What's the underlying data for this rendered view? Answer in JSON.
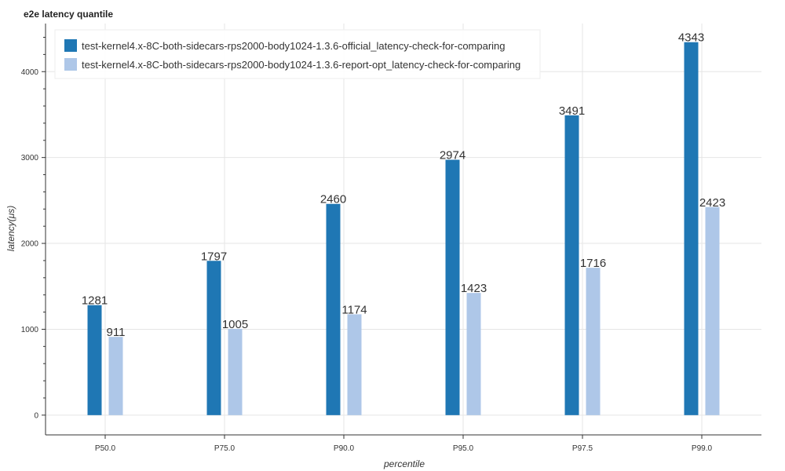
{
  "chart_data": {
    "type": "bar",
    "title": "e2e latency quantile",
    "xlabel": "percentile",
    "ylabel": "latency(μs)",
    "categories": [
      "P50.0",
      "P75.0",
      "P90.0",
      "P95.0",
      "P97.5",
      "P99.0"
    ],
    "series": [
      {
        "name": "test-kernel4.x-8C-both-sidecars-rps2000-body1024-1.3.6-official_latency-check-for-comparing",
        "color": "#1f77b4",
        "values": [
          1281,
          1797,
          2460,
          2974,
          3491,
          4343
        ]
      },
      {
        "name": "test-kernel4.x-8C-both-sidecars-rps2000-body1024-1.3.6-report-opt_latency-check-for-comparing",
        "color": "#aec7e8",
        "values": [
          911,
          1005,
          1174,
          1423,
          1716,
          2423
        ]
      }
    ],
    "yticks": [
      0,
      1000,
      2000,
      3000,
      4000
    ],
    "ylim": [
      -230,
      4560
    ],
    "grid": true,
    "legend_position": "top-left"
  }
}
